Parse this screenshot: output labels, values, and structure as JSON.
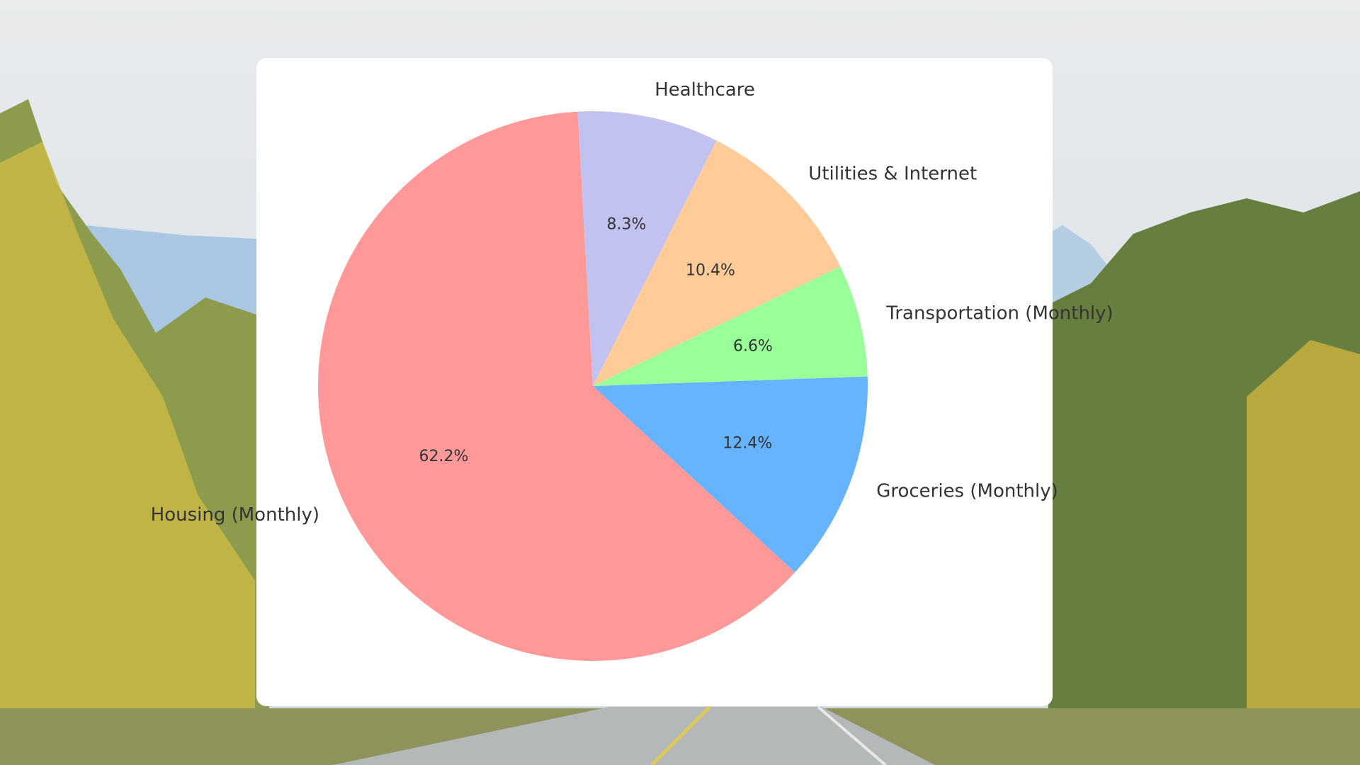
{
  "chart_data": {
    "type": "pie",
    "title": "",
    "start_angle_deg": 2,
    "direction": "clockwise",
    "slices": [
      {
        "label": "Groceries (Monthly)",
        "value": 12.4,
        "pct_text": "12.4%",
        "color": "#66b3ff"
      },
      {
        "label": "Housing (Monthly)",
        "value": 62.2,
        "pct_text": "62.2%",
        "color": "#ff9999"
      },
      {
        "label": "Healthcare",
        "value": 8.3,
        "pct_text": "8.3%",
        "color": "#c2c2f0"
      },
      {
        "label": "Utilities & Internet",
        "value": 10.4,
        "pct_text": "10.4%",
        "color": "#ffcc99"
      },
      {
        "label": "Transportation (Monthly)",
        "value": 6.6,
        "pct_text": "6.6%",
        "color": "#99ff99"
      }
    ]
  },
  "background": {
    "sky": "#e4e8eb",
    "mountain": "#a9c7e2",
    "forest_dark": "#53753f",
    "foliage_yellow": "#cfbe40",
    "road": "#b5b8b8"
  }
}
